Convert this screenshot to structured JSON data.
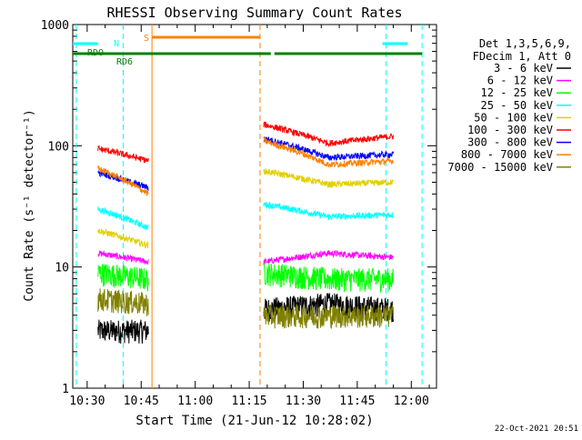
{
  "chart_data": {
    "type": "line",
    "title": "RHESSI Observing Summary Count Rates",
    "xlabel": "Start Time (21-Jun-12 10:28:02)",
    "ylabel": "Count Rate (s⁻¹ detector⁻¹)",
    "yscale": "log",
    "ylim": [
      1,
      1000
    ],
    "y_ticks": [
      "1",
      "10",
      "100",
      "1000"
    ],
    "xlim": [
      "10:26",
      "12:07"
    ],
    "x_ticks": [
      {
        "t": "10:30",
        "label": "10:30"
      },
      {
        "t": "10:45",
        "label": "10:45"
      },
      {
        "t": "11:00",
        "label": "11:00"
      },
      {
        "t": "11:15",
        "label": "11:15"
      },
      {
        "t": "11:30",
        "label": "11:30"
      },
      {
        "t": "11:45",
        "label": "11:45"
      },
      {
        "t": "12:00",
        "label": "12:00"
      }
    ],
    "legend": {
      "placement": "right",
      "header": [
        "Det 1,3,5,6,9,",
        "FDecim 1, Att 0"
      ]
    },
    "data_intervals": [
      [
        "10:33",
        "10:47"
      ],
      [
        "11:19",
        "11:55"
      ]
    ],
    "series": [
      {
        "name": "3 - 6 keV",
        "color": "#000000",
        "levels": [
          [
            3.0,
            3.0
          ],
          [
            4.5,
            5.0,
            4.5
          ]
        ]
      },
      {
        "name": "6 - 12 keV",
        "color": "#ff00ff",
        "levels": [
          [
            13,
            11
          ],
          [
            11,
            13,
            12
          ]
        ]
      },
      {
        "name": "12 - 25 keV",
        "color": "#00ff00",
        "levels": [
          [
            9,
            8
          ],
          [
            9,
            8,
            8
          ]
        ]
      },
      {
        "name": "25 - 50 keV",
        "color": "#00ffff",
        "levels": [
          [
            30,
            21
          ],
          [
            33,
            26,
            27
          ]
        ]
      },
      {
        "name": "50 - 100 keV",
        "color": "#e0d000",
        "levels": [
          [
            20,
            15
          ],
          [
            62,
            48,
            50
          ]
        ]
      },
      {
        "name": "100 - 300 keV",
        "color": "#ff0000",
        "levels": [
          [
            95,
            75
          ],
          [
            150,
            105,
            120
          ]
        ]
      },
      {
        "name": "300 - 800 keV",
        "color": "#0000ff",
        "levels": [
          [
            60,
            45
          ],
          [
            115,
            80,
            85
          ]
        ]
      },
      {
        "name": "800 - 7000 keV",
        "color": "#ff8000",
        "levels": [
          [
            65,
            40
          ],
          [
            110,
            70,
            75
          ]
        ]
      },
      {
        "name": "7000 - 15000 keV",
        "color": "#808000",
        "levels": [
          [
            5.5,
            5.0
          ],
          [
            4.0,
            4.0,
            4.0
          ]
        ]
      }
    ],
    "annotations": [
      {
        "label": "RDO",
        "color": "#008000"
      },
      {
        "label": "RD6",
        "color": "#008000"
      },
      {
        "label": "N",
        "color": "#00ffff"
      },
      {
        "label": "S",
        "color": "#ff8000"
      }
    ],
    "night_bars": [
      [
        "10:26",
        "10:33"
      ],
      [
        "11:52",
        "11:59"
      ]
    ],
    "night_boundaries": [
      "10:27",
      "10:40",
      "11:53",
      "12:03"
    ],
    "saa_bar": [
      "10:48",
      "11:18"
    ],
    "saa_boundaries": [
      "10:48",
      "11:18"
    ],
    "rd_bar": [
      [
        "10:26",
        "11:18"
      ],
      [
        "11:18",
        "11:21"
      ],
      [
        "11:22",
        "12:03"
      ]
    ],
    "timestamp": "22-Oct-2021 20:51"
  }
}
